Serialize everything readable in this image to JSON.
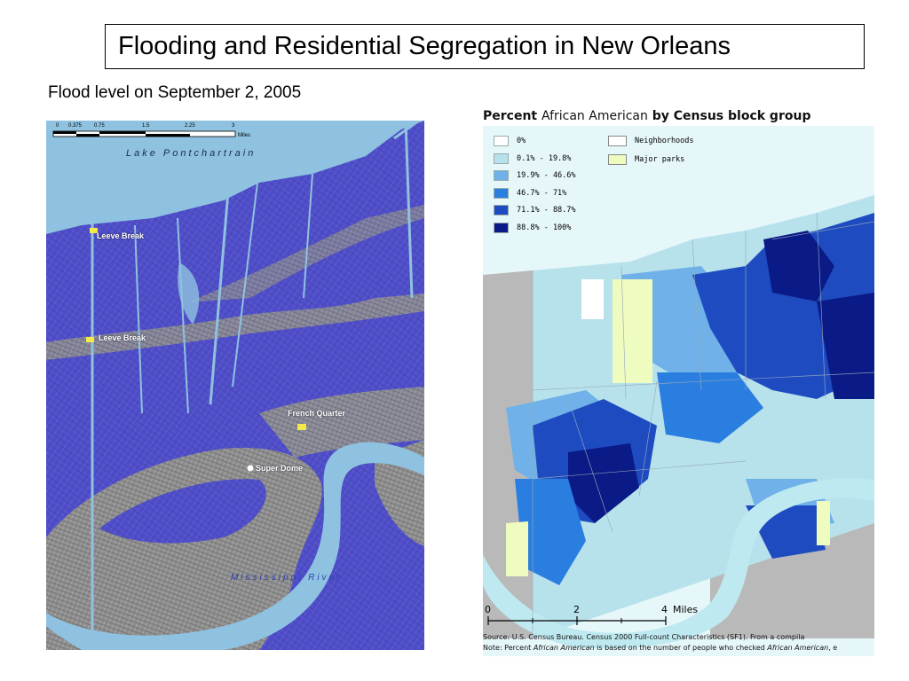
{
  "slide": {
    "title": "Flooding and Residential Segregation in New Orleans",
    "subtitle": "Flood level on September 2, 2005"
  },
  "flood_map": {
    "scale_ticks": [
      "0",
      "0.375",
      "0.75",
      "1.5",
      "2.25",
      "3"
    ],
    "scale_unit": "Miles",
    "labels": {
      "lake": "Lake Pontchartrain",
      "river": "Mississippi River",
      "levee_break_1": "Leeve Break",
      "levee_break_2": "Leeve Break",
      "french_quarter": "French Quarter",
      "super_dome": "Super Dome"
    },
    "colors": {
      "flood": "#4f4ec8",
      "water": "#8fc2e0",
      "dry_land": "#9a9a9a",
      "marker": "#f5e94a"
    }
  },
  "census_map": {
    "title_bold_1": "Percent",
    "title_light": "African American",
    "title_bold_2": "by Census block group",
    "legend_classes": [
      {
        "label": "0%",
        "color": "#ffffff"
      },
      {
        "label": "0.1% - 19.8%",
        "color": "#b7e2ec"
      },
      {
        "label": "19.9% - 46.6%",
        "color": "#6fb1e8"
      },
      {
        "label": "46.7% - 71%",
        "color": "#2a7ee0"
      },
      {
        "label": "71.1% - 88.7%",
        "color": "#1e4cc0"
      },
      {
        "label": "88.8% - 100%",
        "color": "#0a1a86"
      }
    ],
    "legend_other": [
      {
        "label": "Neighborhoods",
        "color": "#ffffff"
      },
      {
        "label": "Major parks",
        "color": "#eefcbf"
      }
    ],
    "scale_ticks": [
      "0",
      "2",
      "4"
    ],
    "scale_unit": "Miles",
    "source_line": "Source: U.S. Census Bureau. Census 2000 Full-count Characteristics (SF1). From a compila",
    "note_line_1": "Note: Percent ",
    "note_italic_1": "African American",
    "note_line_2": " is based on the number of people who checked ",
    "note_italic_2": "African American",
    "note_line_3": ", e"
  }
}
